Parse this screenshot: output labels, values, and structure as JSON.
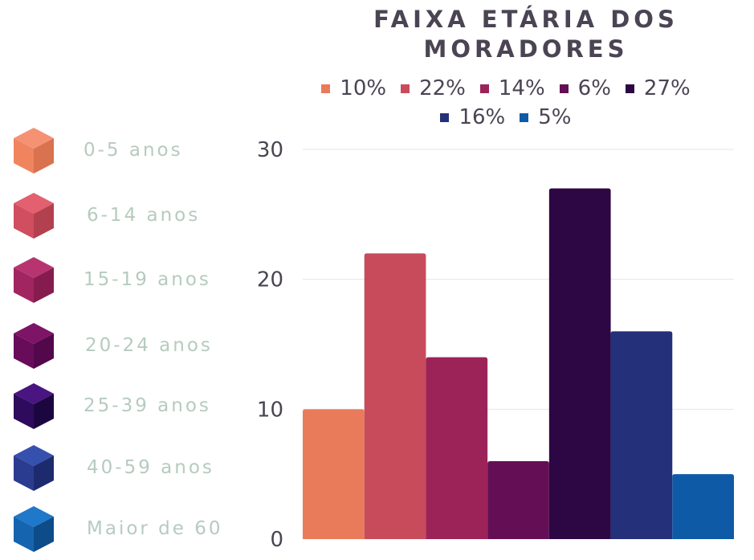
{
  "title_lines": [
    "FAIXA ETÁRIA DOS",
    "MORADORES"
  ],
  "chart_data": {
    "type": "bar",
    "title": "FAIXA ETÁRIA DOS MORADORES",
    "categories": [
      "0-5 anos",
      "6-14 anos",
      "15-19 anos",
      "20-24 anos",
      "25-39 anos",
      "40-59 anos",
      "Maior de 60"
    ],
    "values": [
      10,
      22,
      14,
      6,
      27,
      16,
      5
    ],
    "legend_labels": [
      "10%",
      "22%",
      "14%",
      "6%",
      "27%",
      "16%",
      "5%"
    ],
    "colors": [
      "#e97b5b",
      "#c84b5c",
      "#9c2358",
      "#640f55",
      "#2c0744",
      "#24307a",
      "#0f5aa6"
    ],
    "yticks": [
      0,
      10,
      20,
      30
    ],
    "ylim": [
      0,
      30
    ],
    "xlabel": "",
    "ylabel": "",
    "grid": true,
    "legend_position": "top"
  },
  "side_legend": [
    {
      "label": "0-5 anos",
      "top": "#f59273",
      "left": "#f0845f",
      "right": "#d9724f"
    },
    {
      "label": "6-14 anos",
      "top": "#e2606f",
      "left": "#d04e60",
      "right": "#b3404f"
    },
    {
      "label": "15-19 anos",
      "top": "#b83470",
      "left": "#a12560",
      "right": "#861c4e"
    },
    {
      "label": "20-24 anos",
      "top": "#7e1466",
      "left": "#680c5a",
      "right": "#52084a"
    },
    {
      "label": "25-39 anos",
      "top": "#4a1580",
      "left": "#2e0b5c",
      "right": "#1c063f"
    },
    {
      "label": "40-59 anos",
      "top": "#3650ad",
      "left": "#2a3c8f",
      "right": "#1d2b6e"
    },
    {
      "label": "Maior de 60",
      "top": "#1f78c9",
      "left": "#1564af",
      "right": "#0d4b89"
    }
  ]
}
